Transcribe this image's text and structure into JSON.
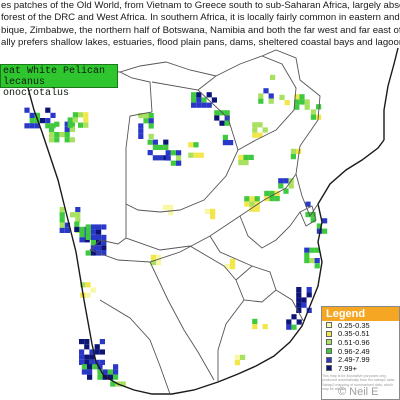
{
  "intro": {
    "lines": [
      "es patches of the Old World, from Vietnam to Greece south to sub-Saharan Africa, largely absent fr",
      "forest of the DRC and West Africa. In southern Africa, it is locally fairly common in eastern and s",
      "bique, Zimbabwe, the northern half of Botswana, Namibia and both the far west and far east of South",
      "ally prefers shallow lakes, estuaries, flood plain pans, dams, sheltered coastal bays and lagoons."
    ]
  },
  "species": {
    "common_name": "eat White Pelican",
    "scientific_name": "lecanus onocrotalus"
  },
  "legend": {
    "title": "Legend",
    "items": [
      {
        "label": "0.25-0.35",
        "color": "#f7f7a6"
      },
      {
        "label": "0.35-0.51",
        "color": "#f2e64a"
      },
      {
        "label": "0.51-0.96",
        "color": "#a8e060"
      },
      {
        "label": "0.96-2.49",
        "color": "#3ec93e"
      },
      {
        "label": "2.49-7.99",
        "color": "#2a38c8"
      },
      {
        "label": "7.99+",
        "color": "#0d1478"
      }
    ]
  },
  "disclaimer": "This map is for illustrative purposes only. produced automatically from the sabap2 data. Sabap2 mapping of summarised data, which may be altered.",
  "watermark": "© Neil E",
  "colors": {
    "coast": "#1a1a1a",
    "border": "#555555"
  }
}
